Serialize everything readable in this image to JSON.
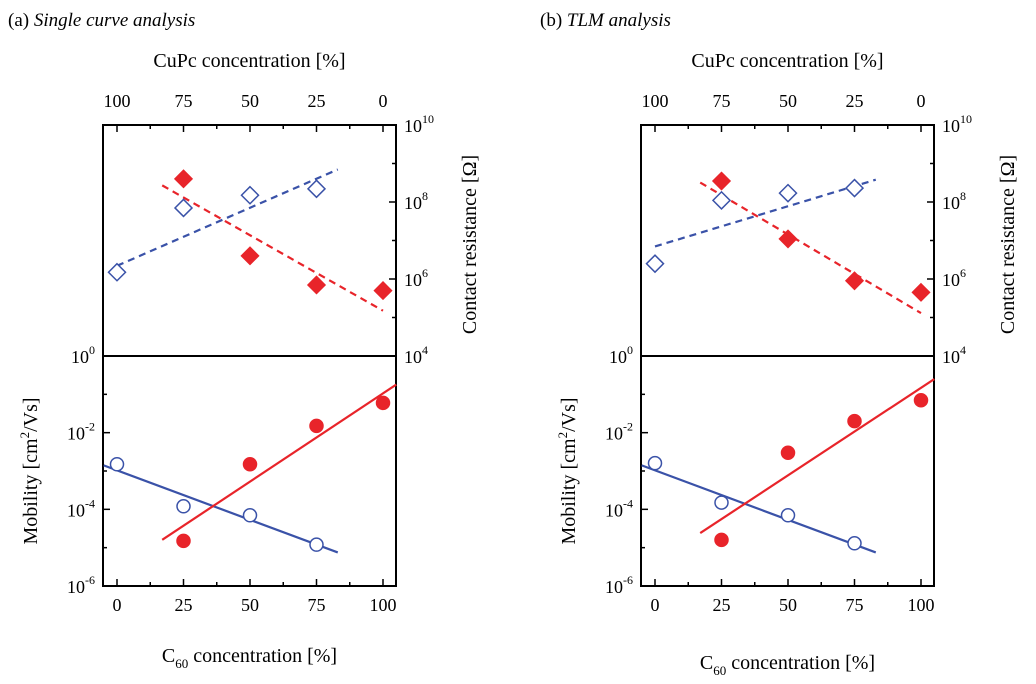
{
  "panels": [
    {
      "label": "(a)",
      "title": "Single curve analysis",
      "top_xlabel": "CuPc concentration [%]",
      "top_ticks": [
        "100",
        "75",
        "50",
        "25",
        "0"
      ],
      "bottom_xlabel_main": "C",
      "bottom_xlabel_sub": "60",
      "bottom_xlabel_rest": " concentration [%]",
      "bottom_ticks": [
        "0",
        "25",
        "50",
        "75",
        "100"
      ],
      "res_label": "Contact resistance [Ω]",
      "mob_label_pre": "Mobility [cm",
      "mob_label_sup": "2",
      "mob_label_post": "/Vs]",
      "res_ticks": [
        {
          "base": "10",
          "exp": "4"
        },
        {
          "base": "10",
          "exp": "6"
        },
        {
          "base": "10",
          "exp": "8"
        },
        {
          "base": "10",
          "exp": "10"
        }
      ],
      "mob_ticks": [
        {
          "base": "10",
          "exp": "-6"
        },
        {
          "base": "10",
          "exp": "-4"
        },
        {
          "base": "10",
          "exp": "-2"
        },
        {
          "base": "10",
          "exp": "0"
        }
      ]
    },
    {
      "label": "(b)",
      "title": "TLM analysis",
      "top_xlabel": "CuPc concentration [%]",
      "top_ticks": [
        "100",
        "75",
        "50",
        "25",
        "0"
      ],
      "bottom_xlabel_main": "C",
      "bottom_xlabel_sub": "60",
      "bottom_xlabel_rest": " concentration [%]",
      "bottom_ticks": [
        "0",
        "25",
        "50",
        "75",
        "100"
      ],
      "res_label": "Contact resistance [Ω]",
      "mob_label_pre": "Mobility [cm",
      "mob_label_sup": "2",
      "mob_label_post": "/Vs]",
      "res_ticks": [
        {
          "base": "10",
          "exp": "4"
        },
        {
          "base": "10",
          "exp": "6"
        },
        {
          "base": "10",
          "exp": "8"
        },
        {
          "base": "10",
          "exp": "10"
        }
      ],
      "mob_ticks": [
        {
          "base": "10",
          "exp": "-6"
        },
        {
          "base": "10",
          "exp": "-4"
        },
        {
          "base": "10",
          "exp": "-2"
        },
        {
          "base": "10",
          "exp": "0"
        }
      ]
    }
  ],
  "colors": {
    "red": "#e8242a",
    "blue": "#3a52a8",
    "axis": "#000000"
  },
  "chart_data": [
    {
      "type": "scatter",
      "panel": "(a) Single curve analysis",
      "subplot": "contact resistance",
      "xlabel": "CuPc concentration [%]",
      "ylabel": "Contact resistance [Ω]",
      "xlim": [
        -5,
        105
      ],
      "ylim": [
        10000,
        10000000000
      ],
      "yscale": "log",
      "series": [
        {
          "marker": "open-diamond",
          "color": "blue",
          "x": [
            0,
            25,
            50,
            75
          ],
          "y": [
            1500000,
            70000000,
            150000000,
            220000000
          ]
        },
        {
          "marker": "filled-diamond",
          "color": "red",
          "x": [
            25,
            50,
            75,
            100
          ],
          "y": [
            400000000,
            4000000,
            700000,
            500000
          ]
        }
      ],
      "fits": [
        {
          "style": "dashed",
          "color": "blue",
          "x": [
            0,
            83
          ],
          "y": [
            2200000,
            700000000
          ]
        },
        {
          "style": "dashed",
          "color": "red",
          "x": [
            17,
            100
          ],
          "y": [
            270000000,
            150000
          ]
        }
      ]
    },
    {
      "type": "scatter",
      "panel": "(a) Single curve analysis",
      "subplot": "mobility",
      "xlabel": "C60 concentration [%]",
      "ylabel": "Mobility [cm2/Vs]",
      "xlim": [
        -5,
        105
      ],
      "ylim": [
        1e-06,
        1
      ],
      "yscale": "log",
      "series": [
        {
          "marker": "open-circle",
          "color": "blue",
          "x": [
            0,
            25,
            50,
            75
          ],
          "y": [
            0.0015,
            0.00012,
            7e-05,
            1.2e-05
          ]
        },
        {
          "marker": "filled-circle",
          "color": "red",
          "x": [
            25,
            50,
            75,
            100
          ],
          "y": [
            1.5e-05,
            0.0015,
            0.015,
            0.06
          ]
        }
      ],
      "fits": [
        {
          "style": "solid",
          "color": "blue",
          "x": [
            -5,
            83
          ],
          "y": [
            0.0014,
            7.5e-06
          ]
        },
        {
          "style": "solid",
          "color": "red",
          "x": [
            17,
            105
          ],
          "y": [
            1.6e-05,
            0.18
          ]
        }
      ]
    },
    {
      "type": "scatter",
      "panel": "(b) TLM analysis",
      "subplot": "contact resistance",
      "xlabel": "CuPc concentration [%]",
      "ylabel": "Contact resistance [Ω]",
      "xlim": [
        -5,
        105
      ],
      "ylim": [
        10000,
        10000000000
      ],
      "yscale": "log",
      "series": [
        {
          "marker": "open-diamond",
          "color": "blue",
          "x": [
            0,
            25,
            50,
            75
          ],
          "y": [
            2500000,
            110000000,
            170000000,
            230000000
          ]
        },
        {
          "marker": "filled-diamond",
          "color": "red",
          "x": [
            25,
            50,
            75,
            100
          ],
          "y": [
            350000000,
            11000000,
            900000,
            450000
          ]
        }
      ],
      "fits": [
        {
          "style": "dashed",
          "color": "blue",
          "x": [
            0,
            83
          ],
          "y": [
            7000000,
            380000000
          ]
        },
        {
          "style": "dashed",
          "color": "red",
          "x": [
            17,
            100
          ],
          "y": [
            320000000,
            130000
          ]
        }
      ]
    },
    {
      "type": "scatter",
      "panel": "(b) TLM analysis",
      "subplot": "mobility",
      "xlabel": "C60 concentration [%]",
      "ylabel": "Mobility [cm2/Vs]",
      "xlim": [
        -5,
        105
      ],
      "ylim": [
        1e-06,
        1
      ],
      "yscale": "log",
      "series": [
        {
          "marker": "open-circle",
          "color": "blue",
          "x": [
            0,
            25,
            50,
            75
          ],
          "y": [
            0.0016,
            0.00015,
            7e-05,
            1.3e-05
          ]
        },
        {
          "marker": "filled-circle",
          "color": "red",
          "x": [
            25,
            50,
            75,
            100
          ],
          "y": [
            1.6e-05,
            0.003,
            0.02,
            0.07
          ]
        }
      ],
      "fits": [
        {
          "style": "solid",
          "color": "blue",
          "x": [
            -5,
            83
          ],
          "y": [
            0.0014,
            7.5e-06
          ]
        },
        {
          "style": "solid",
          "color": "red",
          "x": [
            17,
            105
          ],
          "y": [
            2.4e-05,
            0.25
          ]
        }
      ]
    }
  ]
}
